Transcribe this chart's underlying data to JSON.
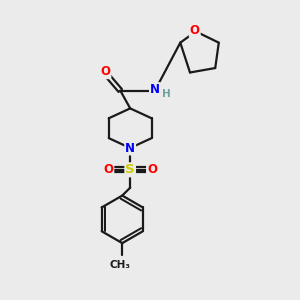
{
  "bg_color": "#ebebeb",
  "bond_color": "#1a1a1a",
  "bond_width": 1.6,
  "atom_colors": {
    "O": "#ff0000",
    "N": "#0000ff",
    "S": "#cccc00",
    "H": "#70a0a0",
    "C": "#1a1a1a"
  },
  "font_size_atom": 8.5,
  "fig_size": [
    3.0,
    3.0
  ],
  "dpi": 100,
  "white": "#ebebeb"
}
